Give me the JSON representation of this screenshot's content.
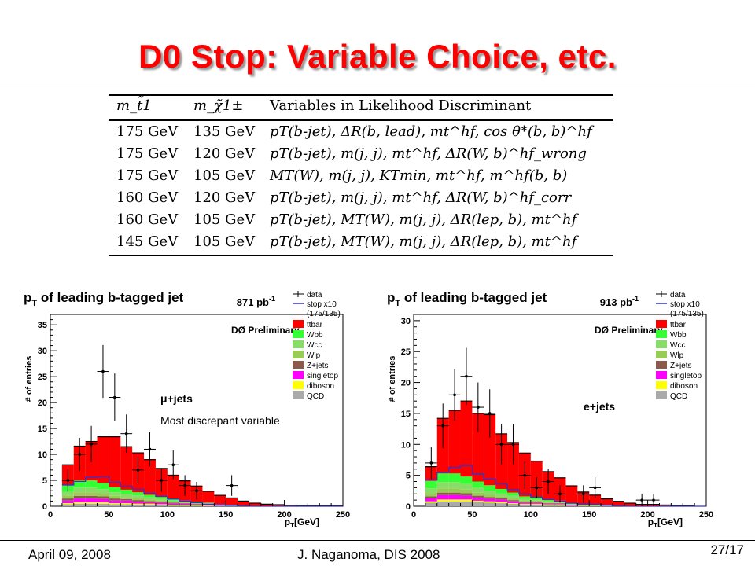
{
  "slide": {
    "title": "D0 Stop: Variable Choice, etc.",
    "footer_date": "April 09, 2008",
    "footer_author": "J. Naganoma, DIS 2008",
    "page": "27/17"
  },
  "table": {
    "headers": [
      "m_t̃1",
      "m_χ̃1±",
      "Variables in Likelihood Discriminant"
    ],
    "rows": [
      [
        "175 GeV",
        "135 GeV",
        "pT(b-jet), ΔR(b, lead), mt^hf, cos θ*(b, b)^hf"
      ],
      [
        "175 GeV",
        "120 GeV",
        "pT(b-jet), m(j, j), mt^hf, ΔR(W, b)^hf_wrong"
      ],
      [
        "175 GeV",
        "105 GeV",
        "MT(W), m(j, j), KTmin, mt^hf, m^hf(b, b)"
      ],
      [
        "160 GeV",
        "120 GeV",
        "pT(b-jet), m(j, j), mt^hf, ΔR(W, b)^hf_corr"
      ],
      [
        "160 GeV",
        "105 GeV",
        "pT(b-jet), MT(W), m(j, j), ΔR(lep, b), mt^hf"
      ],
      [
        "145 GeV",
        "105 GeV",
        "pT(b-jet), MT(W), m(j, j), ΔR(lep, b), mt^hf"
      ]
    ]
  },
  "colors": {
    "ttbar": "#ff0000",
    "Wbb": "#33ff33",
    "Wcc": "#88dd66",
    "Wlp": "#99cc55",
    "Zjets": "#8b5a4a",
    "singletop": "#ff00ff",
    "diboson": "#ffff00",
    "QCD": "#aaaaaa",
    "stop": "#3333cc",
    "title": "#ff0000"
  },
  "chart_data": [
    {
      "type": "bar",
      "title": "p_T of leading b-tagged jet",
      "luminosity": "871 pb-1",
      "label": "DØ Preliminary",
      "channel_label": "μ+jets",
      "annotation": "Most discrepant variable",
      "xlabel": "p_T[GeV]",
      "ylabel": "# of entries",
      "xlim": [
        0,
        250
      ],
      "ylim": [
        0,
        37
      ],
      "xticks": [
        0,
        50,
        100,
        150,
        200,
        250
      ],
      "yticks": [
        0,
        5,
        10,
        15,
        20,
        25,
        30,
        35
      ],
      "bin_edges": [
        10,
        20,
        30,
        40,
        50,
        60,
        70,
        80,
        90,
        100,
        110,
        120,
        130,
        140,
        150,
        160,
        170,
        180,
        190,
        200,
        210,
        220,
        230,
        240,
        250
      ],
      "stack": [
        {
          "name": "QCD",
          "values": [
            0.4,
            0.5,
            0.5,
            0.5,
            0.4,
            0.4,
            0.3,
            0.3,
            0.3,
            0.2,
            0.2,
            0.2,
            0.1,
            0.1,
            0.1,
            0.1,
            0,
            0,
            0,
            0,
            0,
            0,
            0,
            0
          ]
        },
        {
          "name": "diboson",
          "values": [
            0.2,
            0.3,
            0.3,
            0.3,
            0.2,
            0.2,
            0.2,
            0.2,
            0.1,
            0.1,
            0.1,
            0.1,
            0.1,
            0,
            0,
            0,
            0,
            0,
            0,
            0,
            0,
            0,
            0,
            0
          ]
        },
        {
          "name": "singletop",
          "values": [
            0.5,
            0.7,
            0.7,
            0.6,
            0.5,
            0.5,
            0.4,
            0.3,
            0.3,
            0.2,
            0.2,
            0.1,
            0.1,
            0.1,
            0.1,
            0,
            0,
            0,
            0,
            0,
            0,
            0,
            0,
            0
          ]
        },
        {
          "name": "Z+jets",
          "values": [
            0.4,
            0.5,
            0.5,
            0.5,
            0.4,
            0.3,
            0.3,
            0.2,
            0.2,
            0.2,
            0.1,
            0.1,
            0.1,
            0,
            0,
            0,
            0,
            0,
            0,
            0,
            0,
            0,
            0,
            0
          ]
        },
        {
          "name": "Wlp",
          "values": [
            0.6,
            0.7,
            0.7,
            0.6,
            0.5,
            0.4,
            0.4,
            0.3,
            0.2,
            0.2,
            0.1,
            0.1,
            0.1,
            0,
            0,
            0,
            0,
            0,
            0,
            0,
            0,
            0,
            0,
            0
          ]
        },
        {
          "name": "Wcc",
          "values": [
            0.7,
            0.9,
            0.9,
            0.8,
            0.7,
            0.6,
            0.5,
            0.4,
            0.3,
            0.2,
            0.2,
            0.1,
            0.1,
            0.1,
            0,
            0,
            0,
            0,
            0,
            0,
            0,
            0,
            0,
            0
          ]
        },
        {
          "name": "Wbb",
          "values": [
            1.2,
            1.4,
            1.4,
            1.2,
            1.0,
            0.8,
            0.6,
            0.5,
            0.4,
            0.3,
            0.2,
            0.2,
            0.1,
            0.1,
            0.1,
            0,
            0,
            0,
            0,
            0,
            0,
            0,
            0,
            0
          ]
        },
        {
          "name": "ttbar",
          "values": [
            4.0,
            6.6,
            7.5,
            8.9,
            9.7,
            8.3,
            7.6,
            6.8,
            5.5,
            4.6,
            3.8,
            3.0,
            2.2,
            1.7,
            1.3,
            0.9,
            0.6,
            0.4,
            0.3,
            0.2,
            0.1,
            0.1,
            0.1,
            0.1
          ]
        }
      ],
      "stop_x10": [
        4.1,
        4.8,
        5.6,
        5.7,
        4.6,
        3.9,
        3.3,
        2.5,
        1.9,
        1.4,
        1.0,
        0.7,
        0.4,
        0.3,
        0.2,
        0.1,
        0,
        0,
        0,
        0,
        0,
        0,
        0,
        0
      ],
      "data_points": [
        {
          "x": 15,
          "y": 5,
          "err": 2.2
        },
        {
          "x": 25,
          "y": 10,
          "err": 3.2
        },
        {
          "x": 35,
          "y": 12,
          "err": 3.5
        },
        {
          "x": 45,
          "y": 26,
          "err": 5.1
        },
        {
          "x": 55,
          "y": 21,
          "err": 4.6
        },
        {
          "x": 65,
          "y": 14,
          "err": 3.7
        },
        {
          "x": 75,
          "y": 7,
          "err": 2.6
        },
        {
          "x": 85,
          "y": 11,
          "err": 3.3
        },
        {
          "x": 95,
          "y": 5,
          "err": 2.2
        },
        {
          "x": 105,
          "y": 8,
          "err": 2.8
        },
        {
          "x": 115,
          "y": 4,
          "err": 2.0
        },
        {
          "x": 125,
          "y": 3,
          "err": 1.7
        },
        {
          "x": 155,
          "y": 4,
          "err": 2.0
        }
      ],
      "legend": [
        "data",
        "stop x10 (175/135)",
        "ttbar",
        "Wbb",
        "Wcc",
        "Wlp",
        "Z+jets",
        "singletop",
        "diboson",
        "QCD"
      ]
    },
    {
      "type": "bar",
      "title": "p_T of leading b-tagged jet",
      "luminosity": "913 pb-1",
      "label": "DØ Preliminary",
      "channel_label": "e+jets",
      "xlabel": "p_T[GeV]",
      "ylabel": "# of entries",
      "xlim": [
        0,
        250
      ],
      "ylim": [
        0,
        31
      ],
      "xticks": [
        0,
        50,
        100,
        150,
        200,
        250
      ],
      "yticks": [
        0,
        5,
        10,
        15,
        20,
        25,
        30
      ],
      "bin_edges": [
        10,
        20,
        30,
        40,
        50,
        60,
        70,
        80,
        90,
        100,
        110,
        120,
        130,
        140,
        150,
        160,
        170,
        180,
        190,
        200,
        210,
        220,
        230,
        240,
        250
      ],
      "stack": [
        {
          "name": "QCD",
          "values": [
            0.6,
            0.8,
            0.8,
            0.8,
            0.7,
            0.6,
            0.5,
            0.4,
            0.3,
            0.3,
            0.2,
            0.2,
            0.1,
            0.1,
            0.1,
            0.1,
            0,
            0,
            0,
            0,
            0,
            0,
            0,
            0
          ]
        },
        {
          "name": "diboson",
          "values": [
            0.2,
            0.3,
            0.3,
            0.3,
            0.2,
            0.2,
            0.2,
            0.1,
            0.1,
            0.1,
            0.1,
            0.1,
            0,
            0,
            0,
            0,
            0,
            0,
            0,
            0,
            0,
            0,
            0,
            0
          ]
        },
        {
          "name": "singletop",
          "values": [
            0.5,
            0.7,
            0.7,
            0.6,
            0.5,
            0.4,
            0.4,
            0.3,
            0.2,
            0.2,
            0.1,
            0.1,
            0.1,
            0,
            0,
            0,
            0,
            0,
            0,
            0,
            0,
            0,
            0,
            0
          ]
        },
        {
          "name": "Z+jets",
          "values": [
            0.3,
            0.4,
            0.4,
            0.4,
            0.3,
            0.3,
            0.2,
            0.2,
            0.1,
            0.1,
            0.1,
            0.1,
            0,
            0,
            0,
            0,
            0,
            0,
            0,
            0,
            0,
            0,
            0,
            0
          ]
        },
        {
          "name": "Wlp",
          "values": [
            0.5,
            0.7,
            0.7,
            0.6,
            0.5,
            0.4,
            0.3,
            0.3,
            0.2,
            0.2,
            0.1,
            0.1,
            0.1,
            0,
            0,
            0,
            0,
            0,
            0,
            0,
            0,
            0,
            0,
            0
          ]
        },
        {
          "name": "Wcc",
          "values": [
            0.8,
            1.0,
            1.0,
            0.9,
            0.8,
            0.6,
            0.5,
            0.4,
            0.3,
            0.2,
            0.2,
            0.1,
            0.1,
            0,
            0,
            0,
            0,
            0,
            0,
            0,
            0,
            0,
            0,
            0
          ]
        },
        {
          "name": "Wbb",
          "values": [
            1.2,
            1.4,
            1.4,
            1.2,
            1.0,
            0.9,
            0.7,
            0.5,
            0.4,
            0.3,
            0.2,
            0.2,
            0.1,
            0.1,
            0.1,
            0,
            0,
            0,
            0,
            0,
            0,
            0,
            0,
            0
          ]
        },
        {
          "name": "ttbar",
          "values": [
            2.3,
            8.9,
            10.2,
            12.2,
            11.0,
            11.4,
            8.9,
            8.1,
            7.0,
            5.9,
            4.6,
            3.7,
            2.8,
            2.1,
            1.6,
            1.1,
            0.8,
            0.5,
            0.3,
            0.3,
            0.2,
            0.1,
            0.1,
            0
          ]
        }
      ],
      "stop_x10": [
        4.3,
        5.5,
        6.3,
        6.6,
        5.2,
        4.4,
        3.6,
        2.7,
        2.0,
        1.5,
        1.1,
        0.8,
        0.5,
        0.4,
        0.3,
        0.2,
        0.1,
        0,
        0,
        0,
        0,
        0,
        0,
        0
      ],
      "data_points": [
        {
          "x": 15,
          "y": 7,
          "err": 2.6
        },
        {
          "x": 25,
          "y": 13,
          "err": 3.6
        },
        {
          "x": 35,
          "y": 18,
          "err": 4.2
        },
        {
          "x": 45,
          "y": 21,
          "err": 4.6
        },
        {
          "x": 55,
          "y": 16,
          "err": 4.0
        },
        {
          "x": 65,
          "y": 15,
          "err": 3.9
        },
        {
          "x": 75,
          "y": 10,
          "err": 3.2
        },
        {
          "x": 85,
          "y": 10,
          "err": 3.2
        },
        {
          "x": 95,
          "y": 5,
          "err": 2.2
        },
        {
          "x": 105,
          "y": 3,
          "err": 1.7
        },
        {
          "x": 115,
          "y": 4,
          "err": 2.0
        },
        {
          "x": 125,
          "y": 2,
          "err": 1.4
        },
        {
          "x": 145,
          "y": 2,
          "err": 1.4
        },
        {
          "x": 155,
          "y": 3,
          "err": 1.7
        },
        {
          "x": 195,
          "y": 1,
          "err": 1.0
        },
        {
          "x": 205,
          "y": 1,
          "err": 1.0
        }
      ],
      "legend": [
        "data",
        "stop x10 (175/135)",
        "ttbar",
        "Wbb",
        "Wcc",
        "Wlp",
        "Z+jets",
        "singletop",
        "diboson",
        "QCD"
      ]
    }
  ]
}
